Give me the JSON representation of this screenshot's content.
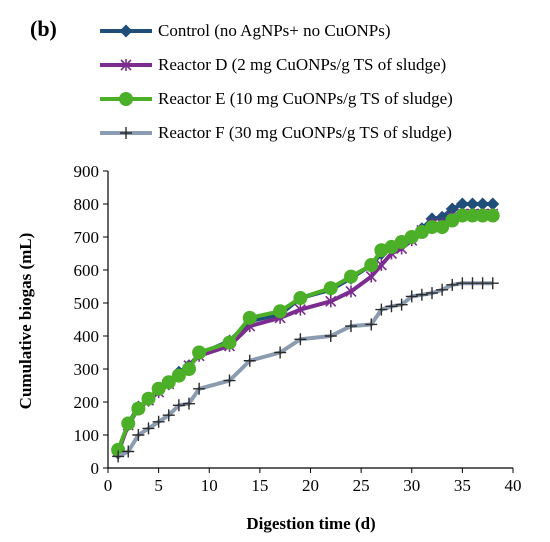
{
  "panel_label": "(b)",
  "chart_data": {
    "type": "line",
    "title": "",
    "xlabel": "Digestion time (d)",
    "ylabel": "Cumulative biogas (mL)",
    "xlim": [
      0,
      40
    ],
    "ylim": [
      0,
      900
    ],
    "xticks": [
      0,
      5,
      10,
      15,
      20,
      25,
      30,
      35,
      40
    ],
    "yticks": [
      0,
      100,
      200,
      300,
      400,
      500,
      600,
      700,
      800,
      900
    ],
    "grid": false,
    "legend_position": "top",
    "series": [
      {
        "name": "Control (no AgNPs+ no CuONPs)",
        "color": "#1f4e79",
        "marker": "diamond",
        "x": [
          1,
          2,
          3,
          4,
          5,
          6,
          7,
          8,
          9,
          12,
          14,
          17,
          19,
          22,
          24,
          26,
          27,
          28,
          29,
          30,
          31,
          32,
          33,
          34,
          35,
          36,
          37,
          38
        ],
        "y": [
          45,
          135,
          185,
          205,
          235,
          255,
          290,
          310,
          345,
          385,
          445,
          465,
          515,
          540,
          575,
          615,
          650,
          670,
          680,
          695,
          725,
          755,
          760,
          785,
          800,
          800,
          800,
          800
        ]
      },
      {
        "name": "Reactor D (2 mg CuONPs/g TS of sludge)",
        "color": "#7b2c8e",
        "marker": "x",
        "x": [
          1,
          2,
          3,
          4,
          5,
          6,
          7,
          8,
          9,
          12,
          14,
          17,
          19,
          22,
          24,
          26,
          27,
          28,
          29,
          30,
          31,
          32,
          33,
          34,
          35,
          36,
          37,
          38
        ],
        "y": [
          50,
          130,
          180,
          205,
          230,
          255,
          280,
          310,
          340,
          370,
          430,
          455,
          480,
          505,
          535,
          580,
          615,
          650,
          665,
          690,
          720,
          740,
          740,
          760,
          770,
          770,
          770,
          770
        ]
      },
      {
        "name": "Reactor E (10 mg CuONPs/g TS of sludge)",
        "color": "#4caf28",
        "marker": "circle",
        "x": [
          1,
          2,
          3,
          4,
          5,
          6,
          7,
          8,
          9,
          12,
          14,
          17,
          19,
          22,
          24,
          26,
          27,
          28,
          29,
          30,
          31,
          32,
          33,
          34,
          35,
          36,
          37,
          38
        ],
        "y": [
          55,
          135,
          180,
          210,
          240,
          260,
          280,
          300,
          350,
          380,
          455,
          475,
          515,
          545,
          580,
          615,
          660,
          670,
          685,
          700,
          715,
          730,
          730,
          750,
          765,
          765,
          765,
          765
        ]
      },
      {
        "name": "Reactor F (30 mg CuONPs/g TS of sludge)",
        "color": "#8c9cb0",
        "marker": "plus",
        "x": [
          1,
          2,
          3,
          4,
          5,
          6,
          7,
          8,
          9,
          12,
          14,
          17,
          19,
          22,
          24,
          26,
          27,
          28,
          29,
          30,
          31,
          32,
          33,
          34,
          35,
          36,
          37,
          38
        ],
        "y": [
          35,
          50,
          100,
          120,
          140,
          160,
          190,
          195,
          240,
          265,
          325,
          350,
          390,
          400,
          430,
          435,
          480,
          490,
          495,
          520,
          525,
          530,
          540,
          555,
          560,
          560,
          560,
          560
        ]
      }
    ]
  }
}
